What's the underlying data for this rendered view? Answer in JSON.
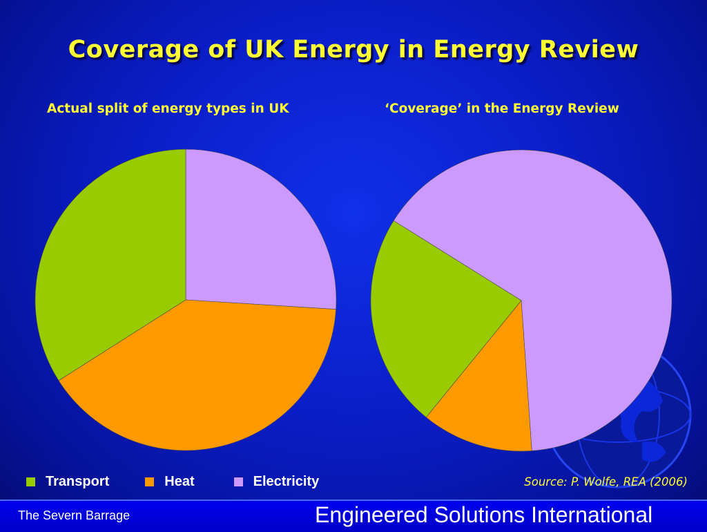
{
  "title": "Coverage of UK Energy in Energy Review",
  "colors": {
    "transport": "#99cc00",
    "heat": "#ff9900",
    "electricity": "#cc99ff",
    "accent_text": "#ffff33"
  },
  "legend": [
    {
      "name": "Transport",
      "color": "#99cc00"
    },
    {
      "name": "Heat",
      "color": "#ff9900"
    },
    {
      "name": "Electricity",
      "color": "#cc99ff"
    }
  ],
  "source": "Source: P. Wolfe, REA (2006)",
  "footer": {
    "left": "The Severn Barrage",
    "right": "Engineered Solutions International"
  },
  "decor": {
    "globe": "globe-icon"
  },
  "chart_data": [
    {
      "type": "pie",
      "title": "Actual split of energy types in UK",
      "categories": [
        "Electricity",
        "Heat",
        "Transport"
      ],
      "values": [
        26,
        40,
        34
      ],
      "colors": [
        "#cc99ff",
        "#ff9900",
        "#99cc00"
      ],
      "legend_position": "bottom-left"
    },
    {
      "type": "pie",
      "title": "‘Coverage’ in the Energy Review",
      "categories": [
        "Electricity",
        "Heat",
        "Transport"
      ],
      "values": [
        65,
        12,
        23
      ],
      "colors": [
        "#cc99ff",
        "#ff9900",
        "#99cc00"
      ],
      "start_angle_deg": 302,
      "legend_position": "bottom-left"
    }
  ]
}
